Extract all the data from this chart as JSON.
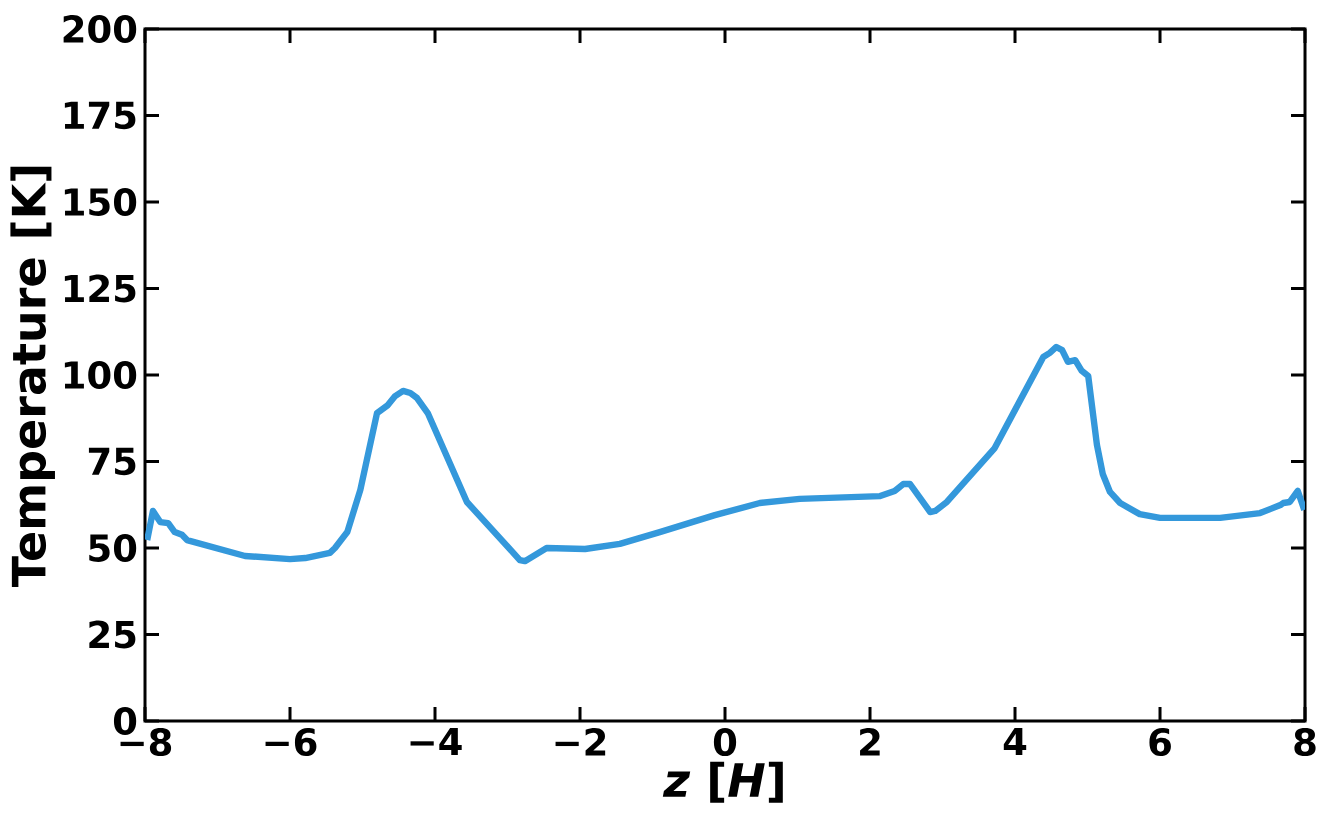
{
  "chart_data": {
    "type": "line",
    "xlabel": "*z* [*H*]",
    "ylabel": "Temperature [K]",
    "xlim": [
      -8,
      8
    ],
    "ylim": [
      0,
      200
    ],
    "xticks": [
      {
        "value": -8,
        "label": "−8"
      },
      {
        "value": -6,
        "label": "−6"
      },
      {
        "value": -4,
        "label": "−4"
      },
      {
        "value": -2,
        "label": "−2"
      },
      0,
      2,
      4,
      6,
      8
    ],
    "yticks": [
      0,
      25,
      50,
      75,
      100,
      125,
      150,
      175,
      200
    ],
    "marker": "none",
    "line_style": "solid",
    "series": [
      {
        "color": "#3498db",
        "x": [
          -7.97,
          -7.89,
          -7.79,
          -7.68,
          -7.59,
          -7.49,
          -7.42,
          -6.62,
          -6.0,
          -5.79,
          -5.45,
          -5.38,
          -5.21,
          -5.03,
          -4.8,
          -4.65,
          -4.55,
          -4.44,
          -4.34,
          -4.25,
          -4.1,
          -3.56,
          -2.83,
          -2.76,
          -2.46,
          -1.93,
          -1.45,
          -0.9,
          -0.14,
          0.48,
          1.03,
          2.14,
          2.34,
          2.46,
          2.55,
          2.83,
          2.9,
          3.06,
          3.72,
          4.39,
          4.48,
          4.57,
          4.65,
          4.73,
          4.83,
          4.92,
          5.01,
          5.13,
          5.21,
          5.31,
          5.45,
          5.72,
          6.0,
          6.83,
          7.38,
          7.66,
          7.7,
          7.79,
          7.9,
          7.99
        ],
        "values": [
          52.3,
          60.7,
          57.5,
          57.2,
          54.6,
          53.8,
          52.3,
          47.7,
          46.8,
          47.1,
          48.6,
          50,
          54.6,
          66.8,
          89,
          91.3,
          93.9,
          95.4,
          94.8,
          93.4,
          89,
          63.3,
          46.5,
          46.2,
          50,
          49.7,
          51.2,
          54.6,
          59.5,
          63,
          64.2,
          65,
          66.5,
          68.5,
          68.5,
          60.4,
          60.7,
          63.3,
          78.9,
          105.2,
          106.4,
          108.1,
          107.2,
          103.8,
          104.3,
          101.2,
          99.7,
          79.8,
          71.4,
          66.2,
          63,
          59.8,
          58.7,
          58.7,
          60.1,
          62.4,
          63,
          63.3,
          66.5,
          61
        ]
      }
    ]
  }
}
